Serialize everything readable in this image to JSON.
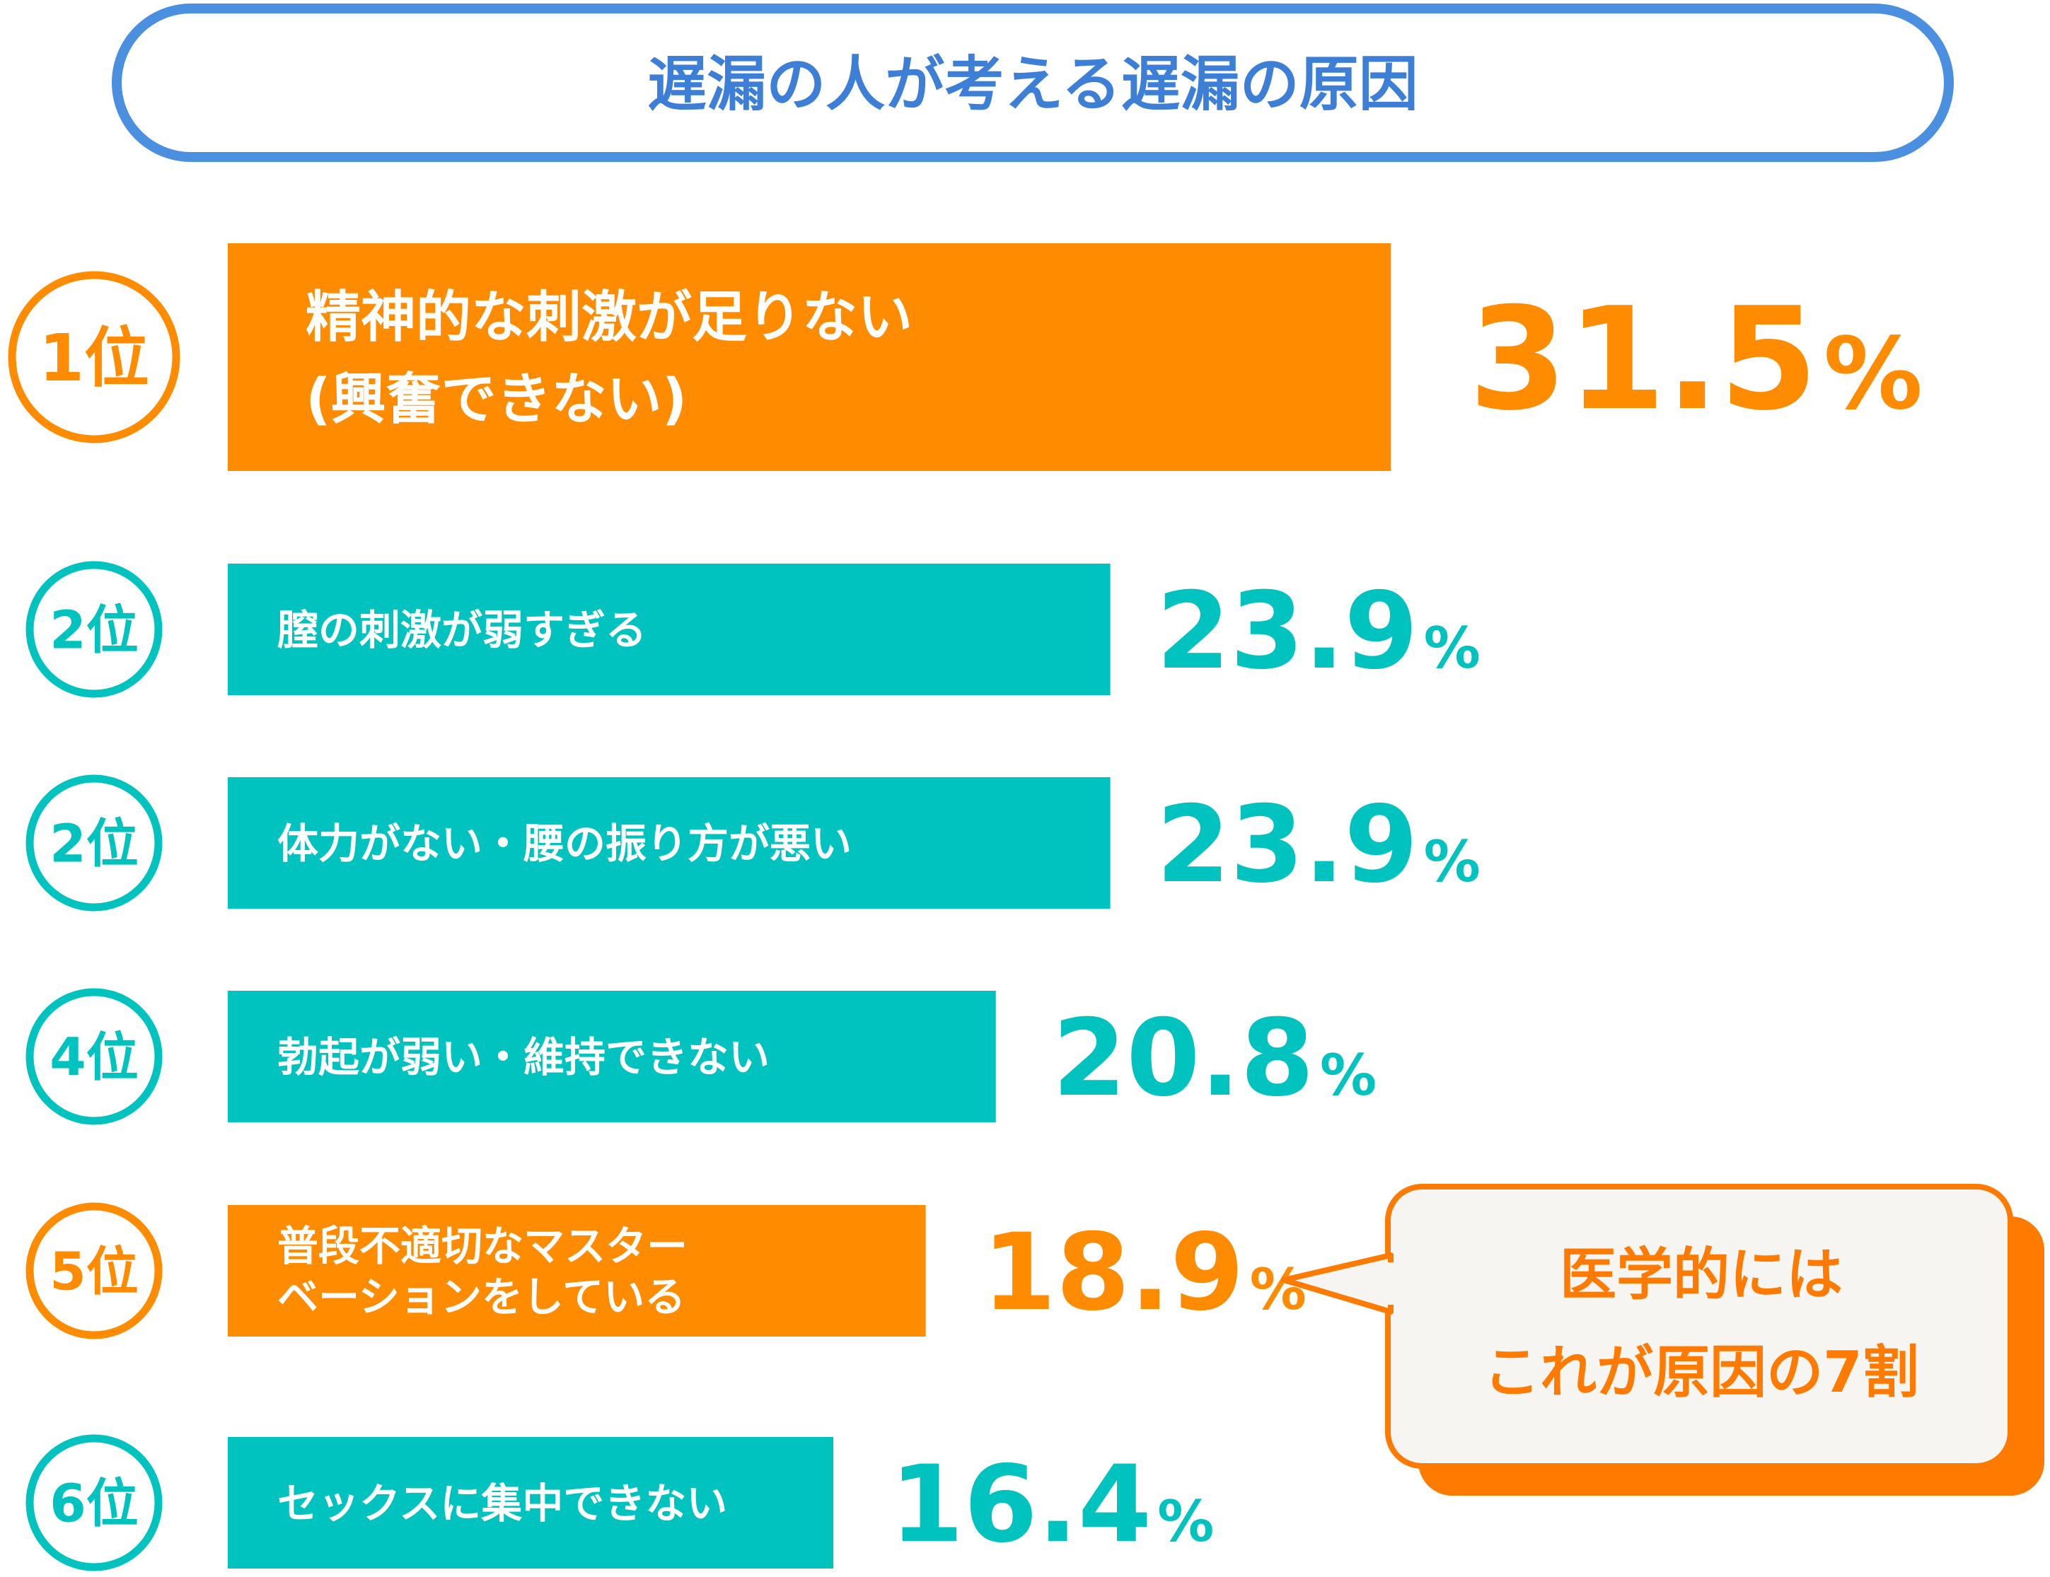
{
  "colors": {
    "title_border": "#4A8FE0",
    "title_text": "#3D7FD6",
    "orange": "#FF8C00",
    "teal": "#00C2BE",
    "callout_fill": "#F7F5F2",
    "callout_shadow": "#FF7A00",
    "callout_text": "#FF7A00",
    "white": "#FFFFFF"
  },
  "chart_data": {
    "type": "bar",
    "title": "遅漏の人が考える遅漏の原因",
    "unit": "%",
    "items": [
      {
        "rank": "1位",
        "label_lines": [
          "精神的な刺激が足りない",
          "(興奮できない)"
        ],
        "value": 31.5,
        "value_text": "31.5",
        "color": "orange"
      },
      {
        "rank": "2位",
        "label_lines": [
          "膣の刺激が弱すぎる"
        ],
        "value": 23.9,
        "value_text": "23.9",
        "color": "teal"
      },
      {
        "rank": "2位",
        "label_lines": [
          "体力がない・腰の振り方が悪い"
        ],
        "value": 23.9,
        "value_text": "23.9",
        "color": "teal"
      },
      {
        "rank": "4位",
        "label_lines": [
          "勃起が弱い・維持できない"
        ],
        "value": 20.8,
        "value_text": "20.8",
        "color": "teal"
      },
      {
        "rank": "5位",
        "label_lines": [
          "普段不適切なマスター",
          "ベーションをしている"
        ],
        "value": 18.9,
        "value_text": "18.9",
        "color": "orange"
      },
      {
        "rank": "6位",
        "label_lines": [
          "セックスに集中できない"
        ],
        "value": 16.4,
        "value_text": "16.4",
        "color": "teal"
      }
    ],
    "callout": {
      "lines": [
        "医学的には",
        "これが原因の7割"
      ]
    }
  }
}
